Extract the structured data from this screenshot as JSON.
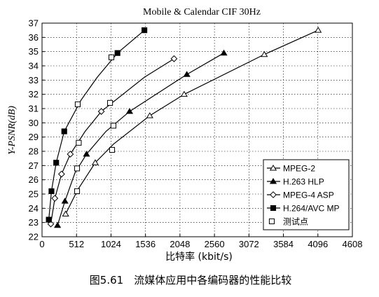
{
  "chart_data": {
    "type": "line",
    "title": "Mobile & Calendar CIF 30Hz",
    "xlabel": "比特率 (kbit/s)",
    "ylabel": "Y-PSNR(dB)",
    "caption": "图5.61　流媒体应用中各编码器的性能比较",
    "xlim": [
      0,
      4608
    ],
    "ylim": [
      22,
      37
    ],
    "x_ticks": [
      0,
      512,
      1024,
      1536,
      2048,
      2560,
      3072,
      3584,
      4096,
      4608
    ],
    "y_ticks": [
      22,
      23,
      24,
      25,
      26,
      27,
      28,
      29,
      30,
      31,
      32,
      33,
      34,
      35,
      36,
      37
    ],
    "grid": true,
    "legend_position": "bottom-right",
    "series": [
      {
        "name": "MPEG-2",
        "marker": "triangle-open",
        "x": [
          350,
          530,
          790,
          1060,
          1600,
          2110,
          3300,
          4100
        ],
        "y": [
          23.6,
          25.3,
          27.2,
          28.5,
          30.5,
          32.0,
          34.8,
          36.5
        ],
        "test_point_indices": [
          1,
          3
        ]
      },
      {
        "name": "H.263 HLP",
        "marker": "triangle-filled",
        "x": [
          230,
          340,
          490,
          660,
          950,
          1300,
          2150,
          2700
        ],
        "y": [
          22.8,
          24.5,
          26.5,
          27.8,
          29.4,
          30.8,
          33.4,
          34.9
        ],
        "test_point_indices": [
          2,
          4
        ]
      },
      {
        "name": "MPEG-4 ASP",
        "marker": "diamond-open",
        "x": [
          130,
          190,
          290,
          420,
          640,
          880,
          1520,
          1960
        ],
        "y": [
          22.9,
          24.7,
          26.4,
          27.8,
          29.4,
          30.8,
          33.2,
          34.5
        ],
        "test_point_indices": [
          4,
          6
        ]
      },
      {
        "name": "H.264/AVC MP",
        "marker": "square-filled",
        "x": [
          100,
          140,
          210,
          330,
          580,
          820,
          1120,
          1520
        ],
        "y": [
          23.2,
          25.2,
          27.2,
          29.4,
          31.6,
          33.2,
          34.9,
          36.5
        ],
        "test_point_indices": [
          4,
          5
        ]
      }
    ],
    "test_points": {
      "name": "测试点",
      "marker": "square-open",
      "x": [
        520,
        520,
        545,
        530,
        1040,
        1060,
        1010,
        1030
      ],
      "y": [
        25.2,
        26.8,
        28.6,
        31.3,
        28.1,
        29.8,
        31.4,
        34.6
      ]
    }
  }
}
